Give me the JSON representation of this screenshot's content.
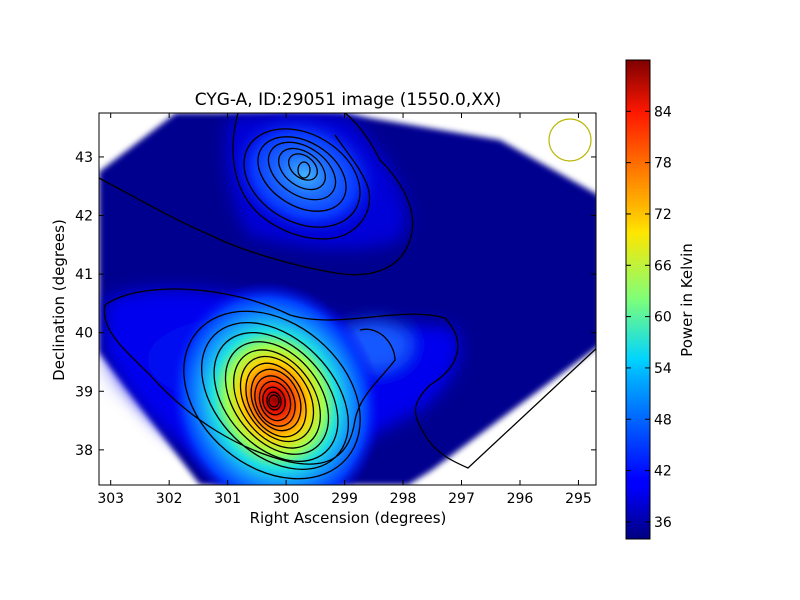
{
  "chart_data": {
    "type": "heatmap",
    "title": "CYG-A, ID:29051 image (1550.0,XX)",
    "xlabel": "Right Ascension (degrees)",
    "ylabel": "Declination (degrees)",
    "colorbar_label": "Power in Kelvin",
    "x_inverted": true,
    "xlim": [
      303.2,
      294.7
    ],
    "ylim": [
      37.4,
      43.75
    ],
    "x_ticks": [
      303,
      302,
      301,
      300,
      299,
      298,
      297,
      296,
      295
    ],
    "y_ticks": [
      38,
      39,
      40,
      41,
      42,
      43
    ],
    "colorbar_range": [
      34,
      90
    ],
    "colorbar_ticks": [
      36,
      42,
      48,
      54,
      60,
      66,
      72,
      78,
      84
    ],
    "colormap": "jet",
    "grid": false,
    "sources": [
      {
        "ra": 300.2,
        "dec": 38.85,
        "peak": 88
      },
      {
        "ra": 299.6,
        "dec": 42.8,
        "peak": 46
      }
    ],
    "beam_circle": {
      "ra": 295.2,
      "dec": 43.3,
      "color": "#b8b800"
    }
  }
}
